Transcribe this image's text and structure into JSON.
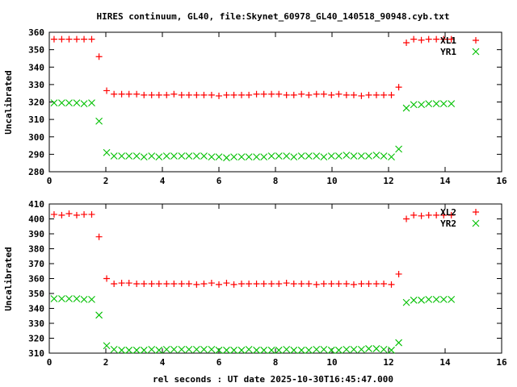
{
  "chart_data": {
    "title": "HIRES continuum, GL40, file:Skynet_60978_GL40_140518_90948.cyb.txt",
    "xlabel": "rel seconds : UT date 2025-10-30T16:45:47.000",
    "x": [
      0.17,
      0.44,
      0.7,
      0.97,
      1.23,
      1.5,
      1.76,
      2.03,
      2.29,
      2.56,
      2.82,
      3.09,
      3.35,
      3.62,
      3.88,
      4.15,
      4.41,
      4.68,
      4.94,
      5.21,
      5.47,
      5.74,
      6.0,
      6.27,
      6.53,
      6.8,
      7.06,
      7.33,
      7.59,
      7.86,
      8.12,
      8.39,
      8.65,
      8.92,
      9.18,
      9.45,
      9.71,
      9.98,
      10.24,
      10.51,
      10.77,
      11.04,
      11.3,
      11.57,
      11.83,
      12.1,
      12.36,
      12.63,
      12.89,
      13.16,
      13.42,
      13.69,
      13.95,
      14.22
    ],
    "panels": [
      {
        "type": "scatter",
        "ylabel": "Uncalibrated",
        "xlim": [
          0,
          16
        ],
        "ylim": [
          280,
          360
        ],
        "xticks": [
          0,
          2,
          4,
          6,
          8,
          10,
          12,
          14,
          16
        ],
        "yticks": [
          280,
          290,
          300,
          310,
          320,
          330,
          340,
          350,
          360
        ],
        "grid": false,
        "legend": "top-right",
        "series": [
          {
            "name": "XL1",
            "marker": "plus",
            "color": "#ff0000",
            "values": [
              356,
              356,
              356,
              356,
              356,
              356,
              346,
              326.5,
              324.5,
              324.5,
              324.5,
              324.5,
              324,
              324,
              324,
              324,
              324.5,
              324,
              324,
              324,
              324,
              324,
              323.5,
              324,
              324,
              324,
              324,
              324.5,
              324.5,
              324.5,
              324.5,
              324,
              324,
              324.5,
              324,
              324.5,
              324.5,
              324,
              324.5,
              324,
              324,
              323.5,
              324,
              324,
              324,
              324,
              328.5,
              354,
              356,
              355.5,
              356,
              356,
              356,
              356
            ]
          },
          {
            "name": "YR1",
            "marker": "cross",
            "color": "#00c000",
            "values": [
              319.5,
              319.5,
              319.5,
              319.5,
              319,
              319.5,
              309,
              291,
              289,
              289,
              289,
              289,
              288.5,
              289,
              288.5,
              289,
              289,
              289,
              289,
              289,
              289,
              288.5,
              288.5,
              288,
              288.5,
              288.5,
              288.5,
              288.5,
              288.5,
              289,
              289,
              289,
              288.5,
              289,
              289,
              289,
              288.5,
              289,
              289,
              289.5,
              289,
              289,
              289,
              289.5,
              289,
              288.5,
              293,
              316.5,
              318.5,
              318.5,
              319,
              319,
              319,
              319
            ]
          }
        ]
      },
      {
        "type": "scatter",
        "ylabel": "Uncalibrated",
        "xlim": [
          0,
          16
        ],
        "ylim": [
          310,
          410
        ],
        "xticks": [
          0,
          2,
          4,
          6,
          8,
          10,
          12,
          14,
          16
        ],
        "yticks": [
          310,
          320,
          330,
          340,
          350,
          360,
          370,
          380,
          390,
          400,
          410
        ],
        "grid": false,
        "legend": "top-right",
        "series": [
          {
            "name": "XL2",
            "marker": "plus",
            "color": "#ff0000",
            "values": [
              403,
              402.5,
              403.5,
              402.5,
              403,
              403,
              388,
              360,
              356.5,
              357,
              357,
              356.5,
              356.5,
              356.5,
              356.5,
              356.5,
              356.5,
              356.5,
              356.5,
              356,
              356.5,
              357,
              356,
              357,
              356,
              356.5,
              356.5,
              356.5,
              356.5,
              356.5,
              356.5,
              357,
              356.5,
              356.5,
              356.5,
              356,
              356.5,
              356.5,
              356.5,
              356.5,
              356,
              356.5,
              356.5,
              356.5,
              356.5,
              356,
              363,
              400,
              402.5,
              402,
              402.5,
              402.5,
              402.5,
              402.5
            ]
          },
          {
            "name": "YR2",
            "marker": "cross",
            "color": "#00c000",
            "values": [
              346.5,
              346.5,
              346.5,
              346.5,
              346,
              346,
              335.5,
              315,
              312.5,
              312,
              312,
              312,
              312,
              312.5,
              312,
              312.5,
              312.5,
              312.5,
              312.5,
              312.5,
              312.5,
              312.5,
              312,
              312,
              312,
              312,
              312.5,
              312,
              312,
              312,
              312,
              312.5,
              312,
              312,
              312,
              312.5,
              312.5,
              312,
              312,
              312.5,
              312.5,
              312.5,
              313,
              313,
              312.5,
              312,
              317,
              344,
              345.5,
              345.5,
              346,
              346,
              346,
              346
            ]
          }
        ]
      }
    ]
  }
}
